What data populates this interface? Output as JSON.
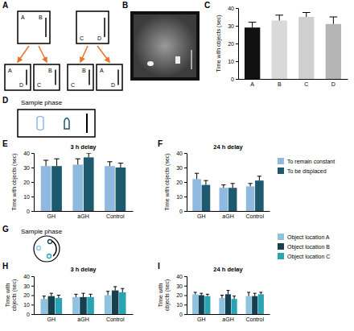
{
  "panels": {
    "a": {
      "letter": "A",
      "top": [
        [
          "A",
          "B"
        ],
        [
          "C",
          "D"
        ]
      ],
      "bottom": [
        [
          "A",
          "D"
        ],
        [
          "C",
          "B"
        ],
        [
          "C",
          "B"
        ],
        [
          "A",
          "D"
        ]
      ]
    },
    "b": {
      "letter": "B"
    },
    "d": {
      "letter": "D",
      "title": "Sample phase"
    },
    "g": {
      "letter": "G",
      "title": "Sample phase"
    }
  },
  "chart_data": [
    {
      "type": "bar",
      "panel": "C",
      "categories": [
        "A",
        "B",
        "C",
        "D"
      ],
      "values": [
        29,
        33,
        35,
        31
      ],
      "errors": [
        3,
        3,
        2.5,
        4
      ],
      "colors": [
        "#111111",
        "#d9d9d9",
        "#cfcfcf",
        "#b5b5b5"
      ],
      "y_label": "Time with objects (sec)",
      "ylim": [
        0,
        40
      ],
      "yticks": [
        0,
        10,
        20,
        30,
        40
      ]
    },
    {
      "type": "bar",
      "panel": "E",
      "title": "3 h delay",
      "categories": [
        "GH",
        "aGH",
        "Control"
      ],
      "series": [
        {
          "color": "#8fb9df",
          "values": [
            31,
            32,
            31
          ],
          "errors": [
            4,
            4,
            3
          ]
        },
        {
          "color": "#1d5a6e",
          "values": [
            31,
            37,
            30
          ],
          "errors": [
            5,
            3,
            3
          ]
        }
      ],
      "y_label": "Time with objects (sec)",
      "ylim": [
        0,
        40
      ],
      "yticks": [
        0,
        10,
        20,
        30,
        40
      ]
    },
    {
      "type": "bar",
      "panel": "F",
      "title": "24 h delay",
      "categories": [
        "GH",
        "aGH",
        "Control"
      ],
      "series": [
        {
          "name": "To remain constant",
          "color": "#8fb9df",
          "values": [
            22,
            16,
            17
          ],
          "errors": [
            4,
            2,
            2
          ]
        },
        {
          "name": "To be displaced",
          "color": "#1d5a6e",
          "values": [
            18,
            16,
            21
          ],
          "errors": [
            3,
            3,
            3
          ]
        }
      ],
      "y_label": "Time with objects (sec)",
      "ylim": [
        0,
        40
      ],
      "yticks": [
        0,
        10,
        20,
        30,
        40
      ],
      "legend": "top-right"
    },
    {
      "type": "bar",
      "panel": "H",
      "title": "3 h delay",
      "categories": [
        "GH",
        "aGH",
        "Control"
      ],
      "series": [
        {
          "color": "#8ec3e0",
          "values": [
            16,
            18,
            20
          ],
          "errors": [
            3,
            3,
            4
          ]
        },
        {
          "color": "#163f4f",
          "values": [
            19,
            18,
            25
          ],
          "errors": [
            3,
            4,
            4
          ]
        },
        {
          "color": "#2aa3b5",
          "values": [
            17,
            18,
            23
          ],
          "errors": [
            3,
            3,
            4
          ]
        }
      ],
      "y_label": "Time with objects (sec)",
      "ylim": [
        0,
        40
      ],
      "yticks": [
        0,
        10,
        20,
        30,
        40
      ]
    },
    {
      "type": "bar",
      "panel": "I",
      "title": "24 h delay",
      "categories": [
        "GH",
        "aGH",
        "Control"
      ],
      "series": [
        {
          "name": "Object location A",
          "color": "#8ec3e0",
          "values": [
            21,
            17,
            19
          ],
          "errors": [
            2,
            3,
            4
          ]
        },
        {
          "name": "Object location B",
          "color": "#163f4f",
          "values": [
            20,
            21,
            19
          ],
          "errors": [
            2,
            4,
            3
          ]
        },
        {
          "name": "Object location C",
          "color": "#2aa3b5",
          "values": [
            19,
            16,
            21
          ],
          "errors": [
            2,
            3,
            2
          ]
        }
      ],
      "y_label": "Time with objects (sec)",
      "ylim": [
        0,
        40
      ],
      "yticks": [
        0,
        10,
        20,
        30,
        40
      ],
      "legend": "top-right"
    }
  ]
}
